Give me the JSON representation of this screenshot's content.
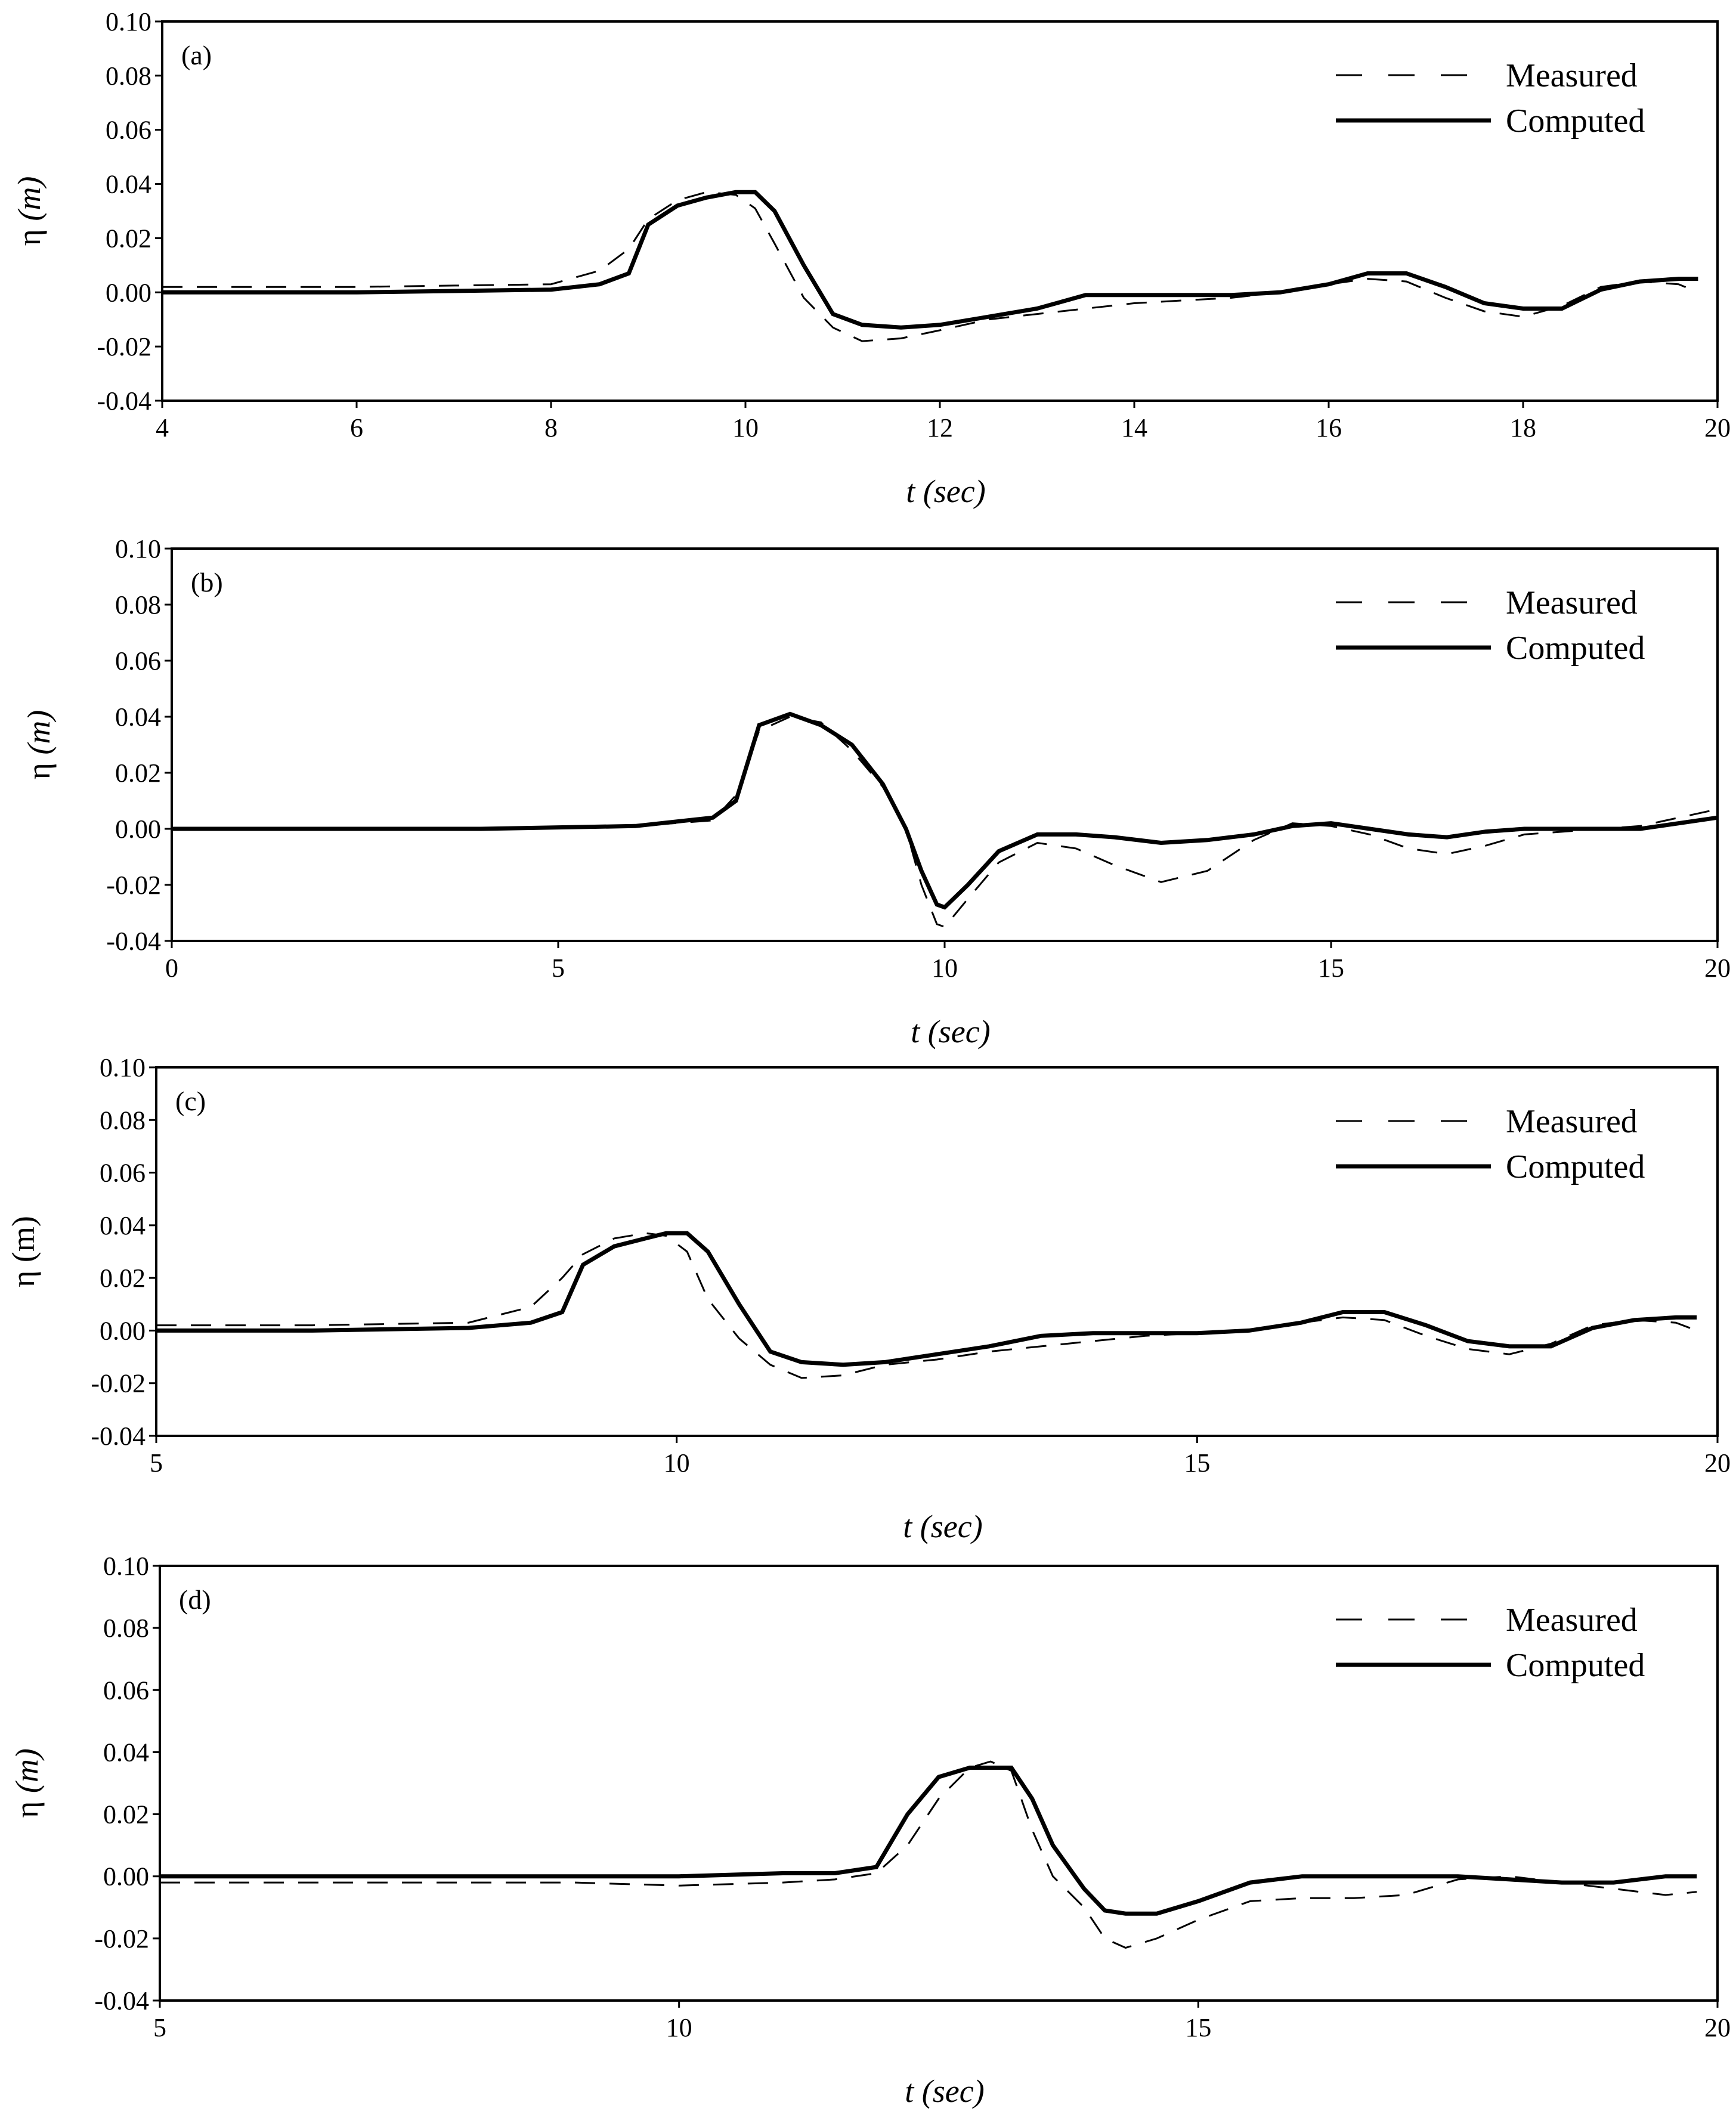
{
  "chart_data": [
    {
      "type": "line",
      "panel_label": "(a)",
      "xlabel": "t (sec)",
      "ylabel": {
        "symbol": "η",
        "unit": "(m)",
        "unit_italic": true
      },
      "xlim": [
        4,
        20
      ],
      "ylim": [
        -0.04,
        0.1
      ],
      "xticks": [
        "4",
        "6",
        "8",
        "10",
        "12",
        "14",
        "16",
        "18",
        "20"
      ],
      "yticks": [
        "0.10",
        "0.08",
        "0.06",
        "0.04",
        "0.02",
        "0.00",
        "-0.02",
        "-0.04"
      ],
      "legend": {
        "position": "top-right",
        "entries": [
          "Measured",
          "Computed"
        ]
      },
      "series": [
        {
          "name": "Measured",
          "style": "dashed",
          "x": [
            4,
            6,
            8,
            8.5,
            8.8,
            9.0,
            9.3,
            9.6,
            9.9,
            10.1,
            10.3,
            10.6,
            10.9,
            11.2,
            11.6,
            12.0,
            12.5,
            13.0,
            13.5,
            14.0,
            14.5,
            15.0,
            15.5,
            16.0,
            16.4,
            16.8,
            17.2,
            17.6,
            18.0,
            18.4,
            18.8,
            19.2,
            19.6,
            19.8
          ],
          "y": [
            0.002,
            0.002,
            0.003,
            0.008,
            0.016,
            0.027,
            0.034,
            0.037,
            0.036,
            0.031,
            0.018,
            -0.002,
            -0.013,
            -0.018,
            -0.017,
            -0.014,
            -0.01,
            -0.008,
            -0.006,
            -0.004,
            -0.003,
            -0.002,
            0.0,
            0.003,
            0.005,
            0.004,
            -0.002,
            -0.007,
            -0.009,
            -0.005,
            0.002,
            0.004,
            0.003,
            0.0
          ]
        },
        {
          "name": "Computed",
          "style": "solid",
          "x": [
            4,
            6,
            8,
            8.5,
            8.8,
            9.0,
            9.3,
            9.6,
            9.9,
            10.1,
            10.3,
            10.6,
            10.9,
            11.2,
            11.6,
            12.0,
            12.5,
            13.0,
            13.5,
            14.0,
            14.5,
            15.0,
            15.5,
            16.0,
            16.4,
            16.8,
            17.2,
            17.6,
            18.0,
            18.4,
            18.8,
            19.2,
            19.6,
            19.8
          ],
          "y": [
            0.0,
            0.0,
            0.001,
            0.003,
            0.007,
            0.025,
            0.032,
            0.035,
            0.037,
            0.037,
            0.03,
            0.01,
            -0.008,
            -0.012,
            -0.013,
            -0.012,
            -0.009,
            -0.006,
            -0.001,
            -0.001,
            -0.001,
            -0.001,
            0.0,
            0.003,
            0.007,
            0.007,
            0.002,
            -0.004,
            -0.006,
            -0.006,
            0.001,
            0.004,
            0.005,
            0.005
          ]
        }
      ]
    },
    {
      "type": "line",
      "panel_label": "(b)",
      "xlabel": "t (sec)",
      "ylabel": {
        "symbol": "η",
        "unit": "(m)",
        "unit_italic": true
      },
      "xlim": [
        0,
        20
      ],
      "ylim": [
        -0.04,
        0.1
      ],
      "xticks": [
        "0",
        "5",
        "10",
        "15",
        "20"
      ],
      "yticks": [
        "0.10",
        "0.08",
        "0.06",
        "0.04",
        "0.02",
        "0.00",
        "-0.02",
        "-0.04"
      ],
      "legend": {
        "position": "top-right",
        "entries": [
          "Measured",
          "Computed"
        ]
      },
      "series": [
        {
          "name": "Measured",
          "style": "dashed",
          "x": [
            0,
            4,
            6,
            7.0,
            7.3,
            7.6,
            8.0,
            8.4,
            8.8,
            9.2,
            9.5,
            9.7,
            9.9,
            10.0,
            10.3,
            10.7,
            11.2,
            11.7,
            12.2,
            12.8,
            13.4,
            14.0,
            14.5,
            15.0,
            15.5,
            16.0,
            16.5,
            17.0,
            17.5,
            18.0,
            18.5,
            19.0,
            19.5,
            20.0
          ],
          "y": [
            0.0,
            0.0,
            0.001,
            0.003,
            0.012,
            0.035,
            0.04,
            0.038,
            0.028,
            0.015,
            0.0,
            -0.02,
            -0.034,
            -0.035,
            -0.025,
            -0.012,
            -0.005,
            -0.007,
            -0.013,
            -0.019,
            -0.015,
            -0.004,
            0.002,
            0.001,
            -0.002,
            -0.007,
            -0.009,
            -0.006,
            -0.002,
            -0.001,
            0.0,
            0.001,
            0.004,
            0.007
          ]
        },
        {
          "name": "Computed",
          "style": "solid",
          "x": [
            0,
            4,
            6,
            7.0,
            7.3,
            7.6,
            8.0,
            8.4,
            8.8,
            9.2,
            9.5,
            9.7,
            9.9,
            10.0,
            10.3,
            10.7,
            11.2,
            11.7,
            12.2,
            12.8,
            13.4,
            14.0,
            14.5,
            15.0,
            15.5,
            16.0,
            16.5,
            17.0,
            17.5,
            18.0,
            18.5,
            19.0,
            19.5,
            20.0
          ],
          "y": [
            0.0,
            0.0,
            0.001,
            0.004,
            0.01,
            0.037,
            0.041,
            0.037,
            0.03,
            0.016,
            0.0,
            -0.015,
            -0.027,
            -0.028,
            -0.02,
            -0.008,
            -0.002,
            -0.002,
            -0.003,
            -0.005,
            -0.004,
            -0.002,
            0.001,
            0.002,
            0.0,
            -0.002,
            -0.003,
            -0.001,
            0.0,
            0.0,
            0.0,
            0.0,
            0.002,
            0.004
          ]
        }
      ]
    },
    {
      "type": "line",
      "panel_label": "(c)",
      "xlabel": "t (sec)",
      "ylabel": {
        "symbol": "η",
        "unit": "(m)",
        "unit_italic": false
      },
      "xlim": [
        5,
        20
      ],
      "ylim": [
        -0.04,
        0.1
      ],
      "xticks": [
        "5",
        "10",
        "15",
        "20"
      ],
      "yticks": [
        "0.10",
        "0.08",
        "0.06",
        "0.04",
        "0.02",
        "0.00",
        "-0.02",
        "-0.04"
      ],
      "legend": {
        "position": "top-right",
        "entries": [
          "Measured",
          "Computed"
        ]
      },
      "series": [
        {
          "name": "Measured",
          "style": "dashed",
          "x": [
            5,
            6.5,
            8.0,
            8.6,
            8.9,
            9.1,
            9.4,
            9.7,
            9.9,
            10.1,
            10.3,
            10.6,
            10.9,
            11.2,
            11.6,
            12.0,
            12.5,
            13.0,
            13.5,
            14.0,
            14.5,
            15.0,
            15.5,
            16.0,
            16.4,
            16.8,
            17.2,
            17.6,
            18.0,
            18.4,
            18.8,
            19.2,
            19.6,
            19.8
          ],
          "y": [
            0.002,
            0.002,
            0.003,
            0.009,
            0.02,
            0.029,
            0.035,
            0.037,
            0.036,
            0.03,
            0.012,
            -0.003,
            -0.013,
            -0.018,
            -0.017,
            -0.013,
            -0.011,
            -0.008,
            -0.006,
            -0.004,
            -0.002,
            -0.001,
            0.0,
            0.003,
            0.005,
            0.004,
            -0.002,
            -0.007,
            -0.009,
            -0.005,
            0.002,
            0.004,
            0.003,
            0.0
          ]
        },
        {
          "name": "Computed",
          "style": "solid",
          "x": [
            5,
            6.5,
            8.0,
            8.6,
            8.9,
            9.1,
            9.4,
            9.7,
            9.9,
            10.1,
            10.3,
            10.6,
            10.9,
            11.2,
            11.6,
            12.0,
            12.5,
            13.0,
            13.5,
            14.0,
            14.5,
            15.0,
            15.5,
            16.0,
            16.4,
            16.8,
            17.2,
            17.6,
            18.0,
            18.4,
            18.8,
            19.2,
            19.6,
            19.8
          ],
          "y": [
            0.0,
            0.0,
            0.001,
            0.003,
            0.007,
            0.025,
            0.032,
            0.035,
            0.037,
            0.037,
            0.03,
            0.01,
            -0.008,
            -0.012,
            -0.013,
            -0.012,
            -0.009,
            -0.006,
            -0.002,
            -0.001,
            -0.001,
            -0.001,
            0.0,
            0.003,
            0.007,
            0.007,
            0.002,
            -0.004,
            -0.006,
            -0.006,
            0.001,
            0.004,
            0.005,
            0.005
          ]
        }
      ]
    },
    {
      "type": "line",
      "panel_label": "(d)",
      "xlabel": "t (sec)",
      "ylabel": {
        "symbol": "η",
        "unit": "(m)",
        "unit_italic": true
      },
      "xlim": [
        5,
        20
      ],
      "ylim": [
        -0.04,
        0.1
      ],
      "xticks": [
        "5",
        "10",
        "15",
        "20"
      ],
      "yticks": [
        "0.10",
        "0.08",
        "0.06",
        "0.04",
        "0.02",
        "0.00",
        "-0.02",
        "-0.04"
      ],
      "legend": {
        "position": "top-right",
        "entries": [
          "Measured",
          "Computed"
        ]
      },
      "series": [
        {
          "name": "Measured",
          "style": "dashed",
          "x": [
            5,
            7,
            9,
            10,
            11,
            11.5,
            11.9,
            12.2,
            12.5,
            12.8,
            13.0,
            13.2,
            13.4,
            13.6,
            13.9,
            14.1,
            14.3,
            14.6,
            15.0,
            15.5,
            16.0,
            16.5,
            17.0,
            17.5,
            18.0,
            18.5,
            19.0,
            19.5,
            19.8
          ],
          "y": [
            -0.002,
            -0.002,
            -0.002,
            -0.003,
            -0.002,
            -0.001,
            0.001,
            0.01,
            0.025,
            0.035,
            0.037,
            0.034,
            0.015,
            0.0,
            -0.01,
            -0.02,
            -0.023,
            -0.02,
            -0.014,
            -0.008,
            -0.007,
            -0.007,
            -0.006,
            -0.001,
            0.0,
            -0.002,
            -0.004,
            -0.006,
            -0.005
          ]
        },
        {
          "name": "Computed",
          "style": "solid",
          "x": [
            5,
            7,
            9,
            10,
            11,
            11.5,
            11.9,
            12.2,
            12.5,
            12.8,
            13.0,
            13.2,
            13.4,
            13.6,
            13.9,
            14.1,
            14.3,
            14.6,
            15.0,
            15.5,
            16.0,
            16.5,
            17.0,
            17.5,
            18.0,
            18.5,
            19.0,
            19.5,
            19.8
          ],
          "y": [
            0.0,
            0.0,
            0.0,
            0.0,
            0.001,
            0.001,
            0.003,
            0.02,
            0.032,
            0.035,
            0.035,
            0.035,
            0.025,
            0.01,
            -0.004,
            -0.011,
            -0.012,
            -0.012,
            -0.008,
            -0.002,
            0.0,
            0.0,
            0.0,
            0.0,
            -0.001,
            -0.002,
            -0.002,
            0.0,
            0.0
          ]
        }
      ]
    }
  ]
}
